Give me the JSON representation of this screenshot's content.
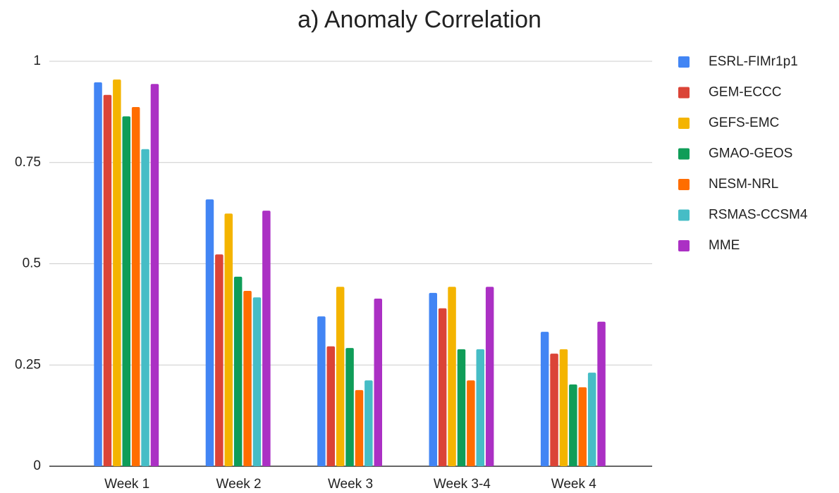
{
  "chart_data": {
    "type": "bar",
    "title": "a) Anomaly Correlation",
    "categories": [
      "Week 1",
      "Week 2",
      "Week 3",
      "Week 3-4",
      "Week 4"
    ],
    "series": [
      {
        "name": "ESRL-FIMr1p1",
        "color": "#4285f4",
        "values": [
          0.948,
          0.659,
          0.37,
          0.428,
          0.332
        ]
      },
      {
        "name": "GEM-ECCC",
        "color": "#db4437",
        "values": [
          0.917,
          0.523,
          0.296,
          0.39,
          0.278
        ]
      },
      {
        "name": "GEFS-EMC",
        "color": "#f4b400",
        "values": [
          0.955,
          0.624,
          0.443,
          0.443,
          0.289
        ]
      },
      {
        "name": "GMAO-GEOS",
        "color": "#0f9d58",
        "values": [
          0.864,
          0.468,
          0.292,
          0.289,
          0.202
        ]
      },
      {
        "name": "NESM-NRL",
        "color": "#ff6d00",
        "values": [
          0.887,
          0.433,
          0.188,
          0.212,
          0.195
        ]
      },
      {
        "name": "RSMAS-CCSM4",
        "color": "#46bdc6",
        "values": [
          0.783,
          0.417,
          0.212,
          0.289,
          0.231
        ]
      },
      {
        "name": "MME",
        "color": "#ab30c4",
        "values": [
          0.944,
          0.631,
          0.414,
          0.443,
          0.357
        ]
      }
    ],
    "ylim": [
      0,
      1
    ],
    "yticks": [
      0,
      0.25,
      0.5,
      0.75,
      1
    ],
    "grid": true,
    "legend": "right"
  }
}
